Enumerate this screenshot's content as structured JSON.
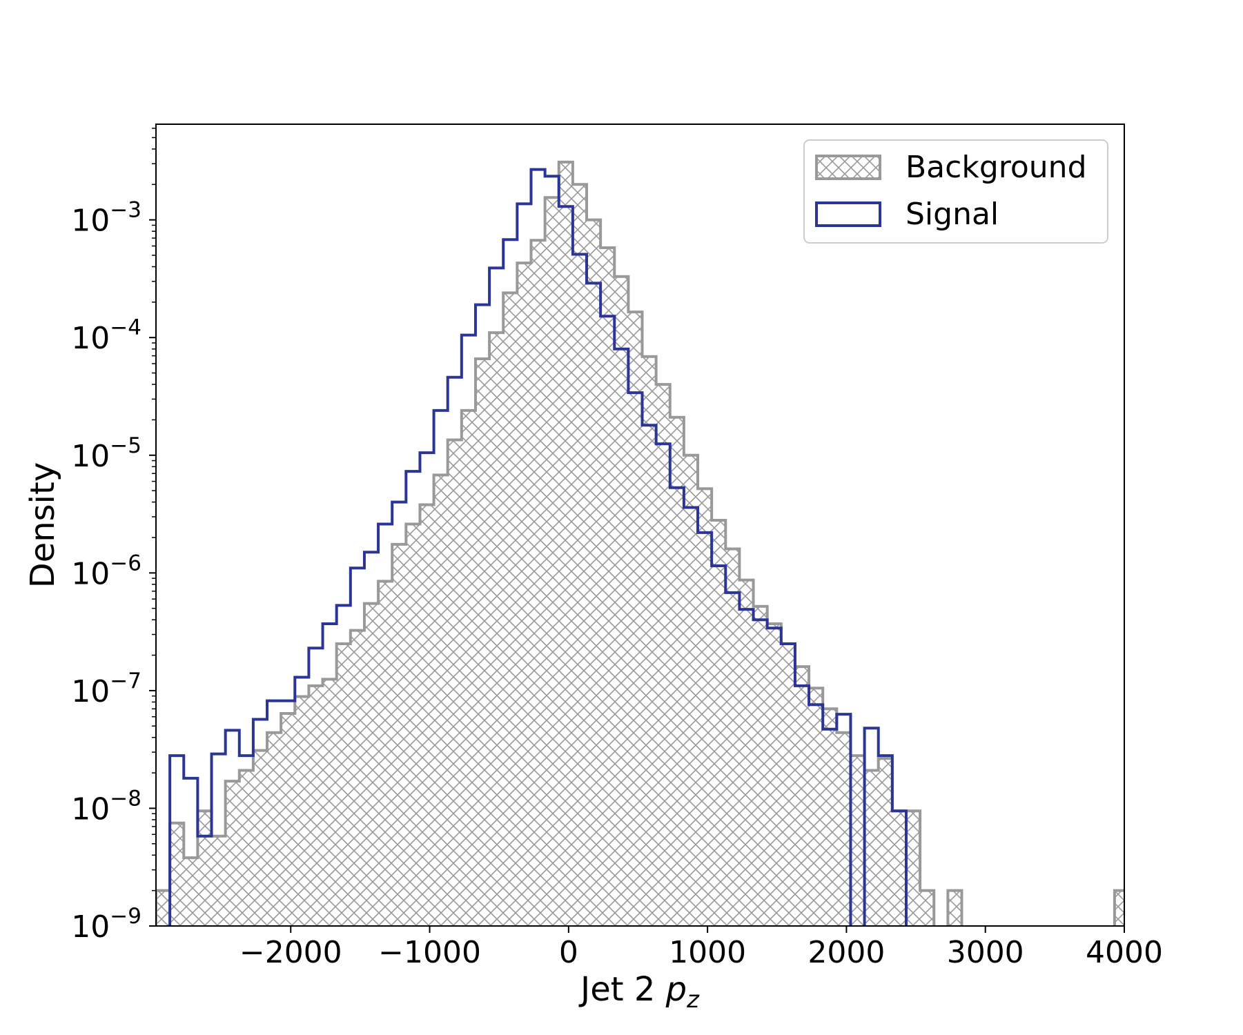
{
  "chart_data": {
    "type": "histogram",
    "xlabel": "Jet 2",
    "xlabel_math": "p",
    "xlabel_sub": "z",
    "ylabel": "Density",
    "yscale": "log",
    "xlim": [
      -2970,
      4000
    ],
    "ylim": [
      1e-09,
      0.0065
    ],
    "bin_width": 100,
    "x_start": -2970,
    "xticks": [
      -2000,
      -1000,
      0,
      1000,
      2000,
      3000,
      4000
    ],
    "xtick_labels": [
      "−2000",
      "−1000",
      "0",
      "1000",
      "2000",
      "3000",
      "4000"
    ],
    "yticks": [
      {
        "value": 1e-09,
        "mantissa": "10",
        "exp": "−9"
      },
      {
        "value": 1e-08,
        "mantissa": "10",
        "exp": "−8"
      },
      {
        "value": 1e-07,
        "mantissa": "10",
        "exp": "−7"
      },
      {
        "value": 1e-06,
        "mantissa": "10",
        "exp": "−6"
      },
      {
        "value": 1e-05,
        "mantissa": "10",
        "exp": "−5"
      },
      {
        "value": 0.0001,
        "mantissa": "10",
        "exp": "−4"
      },
      {
        "value": 0.001,
        "mantissa": "10",
        "exp": "−3"
      }
    ],
    "legend": {
      "position": "top-right",
      "entries": [
        "Background",
        "Signal"
      ]
    },
    "grid": false,
    "series": [
      {
        "name": "Background",
        "style": "hatched-step",
        "color": "#999999",
        "values": [
          2e-09,
          7.5e-09,
          3.8e-09,
          9.5e-09,
          5.8e-09,
          1.7e-08,
          2.1e-08,
          3.1e-08,
          4.4e-08,
          6.4e-08,
          8.9e-08,
          1.1e-07,
          1.25e-07,
          2.5e-07,
          3.25e-07,
          5.5e-07,
          8.5e-07,
          1.75e-06,
          2.6e-06,
          3.8e-06,
          6.8e-06,
          1.35e-05,
          2.4e-05,
          6.6e-05,
          0.00011,
          0.00024,
          0.00043,
          0.00067,
          0.00155,
          0.0031,
          0.002,
          0.001,
          0.00058,
          0.00033,
          0.000165,
          6.9e-05,
          4e-05,
          2.1e-05,
          1e-05,
          5.2e-06,
          2.8e-06,
          1.6e-06,
          8.7e-07,
          5.2e-07,
          3.7e-07,
          2.5e-07,
          1.6e-07,
          1.05e-07,
          7e-08,
          4.4e-08,
          2.8e-08,
          2.1e-08,
          2.65e-08,
          9.5e-09,
          9.5e-09,
          2e-09,
          0,
          2e-09,
          0,
          0,
          0,
          0,
          0,
          0,
          0,
          0,
          0,
          0,
          0,
          2e-09
        ]
      },
      {
        "name": "Signal",
        "style": "step",
        "color": "#2b3595",
        "values": [
          0,
          2.8e-08,
          1.8e-08,
          5.8e-09,
          2.9e-08,
          4.6e-08,
          2.8e-08,
          5.7e-08,
          8.2e-08,
          8.2e-08,
          1.3e-07,
          2.3e-07,
          3.7e-07,
          5.3e-07,
          1.1e-06,
          1.5e-06,
          2.6e-06,
          4e-06,
          7.3e-06,
          1.05e-05,
          2.4e-05,
          4.6e-05,
          0.000105,
          0.00019,
          0.00039,
          0.00068,
          0.00137,
          0.00268,
          0.00235,
          0.0013,
          0.00051,
          0.00029,
          0.000152,
          8e-05,
          3.4e-05,
          1.8e-05,
          1.25e-05,
          5.3e-06,
          3.6e-06,
          2.2e-06,
          1.15e-06,
          6.8e-07,
          4.9e-07,
          4e-07,
          3.4e-07,
          2.5e-07,
          1.1e-07,
          7.6e-08,
          4.7e-08,
          6.3e-08,
          0,
          4.8e-08,
          2.8e-08,
          9.5e-09
        ]
      }
    ]
  }
}
